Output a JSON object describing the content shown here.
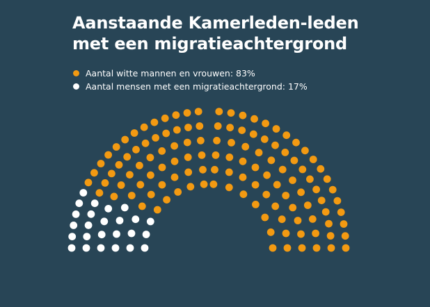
{
  "title_line1": "Aanstaande Kamerleden-leden",
  "title_line2": "met een migratieachtergrond",
  "colors": {
    "background": "#284556",
    "orange": "#F39A12",
    "white": "#FFFFFF"
  },
  "chart_data": {
    "type": "parliament",
    "total_seats": 150,
    "series": [
      {
        "name": "Aantal witte mannen en vrouwen",
        "label": "Aantal witte mannen en vrouwen: 83%",
        "percent": 83,
        "seats": 125,
        "color": "#F39A12"
      },
      {
        "name": "Aantal mensen met een migratieachtergrond",
        "label": "Aantal mensen met een migratieachtergrond: 17%",
        "percent": 17,
        "seats": 25,
        "color": "#FFFFFF"
      }
    ],
    "legend_position": "top-left"
  }
}
